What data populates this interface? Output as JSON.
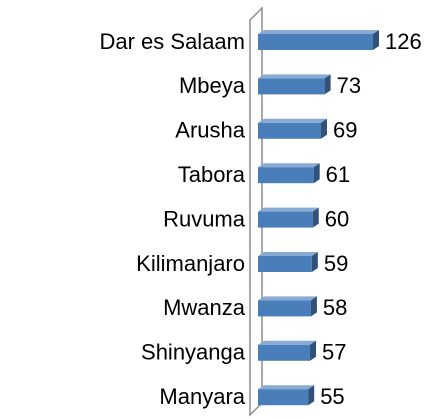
{
  "chart_data": {
    "type": "bar",
    "orientation": "horizontal",
    "categories": [
      "Dar es Salaam",
      "Mbeya",
      "Arusha",
      "Tabora",
      "Ruvuma",
      "Kilimanjaro",
      "Mwanza",
      "Shinyanga",
      "Manyara"
    ],
    "values": [
      126,
      73,
      69,
      61,
      60,
      59,
      58,
      57,
      55
    ],
    "color": "#4a7ebb",
    "grid": false
  }
}
